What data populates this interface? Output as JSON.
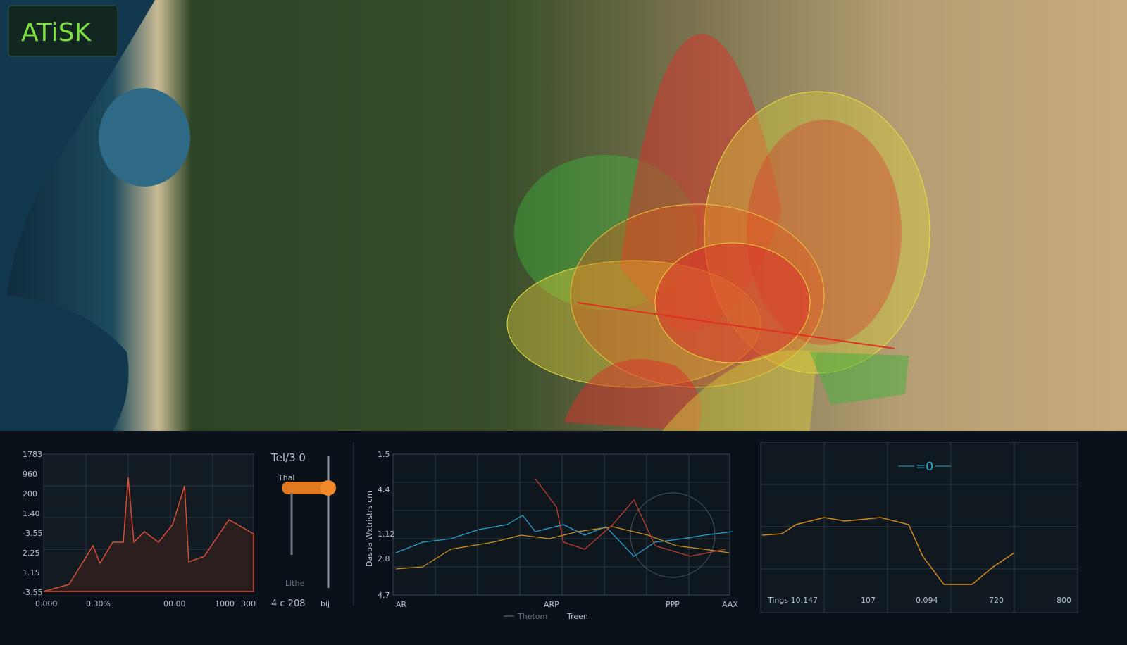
{
  "header": {
    "title": "ATiSK"
  },
  "panels": [
    {
      "y_labels": [
        "1783",
        "960",
        "200",
        "1.40",
        "-3.55",
        "2.25",
        "1.15",
        "-3.55"
      ],
      "x_labels": [
        "0.000",
        "0.30%",
        "00.00",
        "1000",
        "300"
      ]
    },
    {
      "y_labels": [
        "1.5",
        "4.4",
        "1.12",
        "2.8",
        "4.7"
      ],
      "axis_title": "Dasba Wxtristrs cm",
      "x_labels": [
        "AR",
        "ARP",
        "PPP",
        "AAX"
      ],
      "legend": [
        "Thetom",
        "Treen"
      ]
    },
    {
      "title": "=0",
      "x_labels": [
        "Tings 10.147",
        "107",
        "0.094",
        "720",
        "800"
      ]
    }
  ],
  "slider": {
    "label": "Tel/3 0",
    "sub": "Thal",
    "legend": "Lithe",
    "bottom": "4 c 208",
    "unit": "bij"
  }
}
